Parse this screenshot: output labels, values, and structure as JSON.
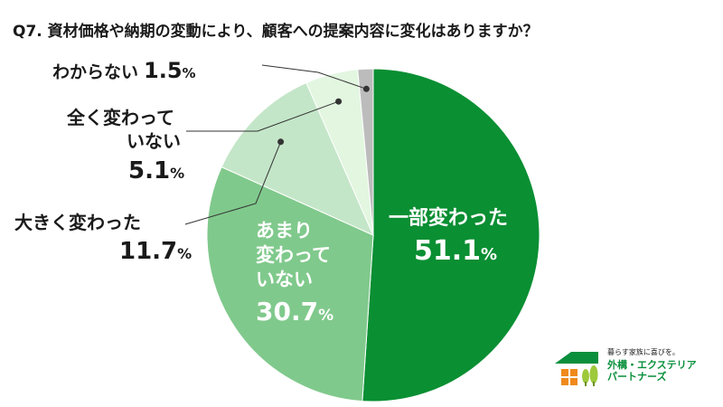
{
  "question": "Q7. 資材価格や納期の変動により、顧客への提案内容に変化はありますか？",
  "chart_data": {
    "type": "pie",
    "title": "Q7. 資材価格や納期の変動により、顧客への提案内容に変化はありますか？",
    "unit": "%",
    "slices": [
      {
        "label": "一部変わった",
        "value": 51.1,
        "color": "#0a8f33"
      },
      {
        "label": "あまり変わっていない",
        "value": 30.7,
        "color": "#80c98c"
      },
      {
        "label": "大きく変わった",
        "value": 11.7,
        "color": "#c4e6c8"
      },
      {
        "label": "全く変わっていない",
        "value": 5.1,
        "color": "#e2f6e0"
      },
      {
        "label": "わからない",
        "value": 1.5,
        "color": "#bcbcbc"
      }
    ]
  },
  "labels": {
    "ichibu": {
      "lines": [
        "一部変わった"
      ],
      "value": "51.1",
      "unit": "%"
    },
    "amari": {
      "lines": [
        "あまり",
        "変わって",
        "いない"
      ],
      "value": "30.7",
      "unit": "%"
    },
    "ookiku": {
      "lines": [
        "大きく変わった"
      ],
      "value": "11.7",
      "unit": "%"
    },
    "mattaku": {
      "lines": [
        "全く変わって",
        "いない"
      ],
      "value": "5.1",
      "unit": "%"
    },
    "wakaranai": {
      "lines": [
        "わからない"
      ],
      "value": "1.5",
      "unit": "%"
    }
  },
  "brand": {
    "tagline": "暮らす家族に喜びを。",
    "name_line1": "外構・エクステリア",
    "name_line2": "パートナーズ",
    "color": "#0a8f3c"
  }
}
